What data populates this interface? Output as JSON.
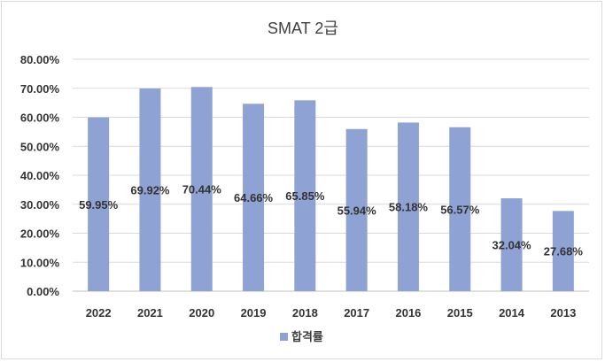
{
  "chart_data": {
    "type": "bar",
    "title": "SMAT 2급",
    "categories": [
      "2022",
      "2021",
      "2020",
      "2019",
      "2018",
      "2017",
      "2016",
      "2015",
      "2014",
      "2013"
    ],
    "series": [
      {
        "name": "합격률",
        "values": [
          59.95,
          69.92,
          70.44,
          64.66,
          65.85,
          55.94,
          58.18,
          56.57,
          32.04,
          27.68
        ],
        "labels": [
          "59.95%",
          "69.92%",
          "70.44%",
          "64.66%",
          "65.85%",
          "55.94%",
          "58.18%",
          "56.57%",
          "32.04%",
          "27.68%"
        ]
      }
    ],
    "ylim": [
      0,
      80
    ],
    "y_ticks": [
      {
        "value": 0,
        "label": "0.00%"
      },
      {
        "value": 10,
        "label": "10.00%"
      },
      {
        "value": 20,
        "label": "20.00%"
      },
      {
        "value": 30,
        "label": "30.00%"
      },
      {
        "value": 40,
        "label": "40.00%"
      },
      {
        "value": 50,
        "label": "50.00%"
      },
      {
        "value": 60,
        "label": "60.00%"
      },
      {
        "value": 70,
        "label": "70.00%"
      },
      {
        "value": 80,
        "label": "80.00%"
      }
    ],
    "xlabel": "",
    "ylabel": "",
    "grid": true,
    "legend": "bottom",
    "colors": {
      "bar": "#8fa2d4"
    }
  }
}
